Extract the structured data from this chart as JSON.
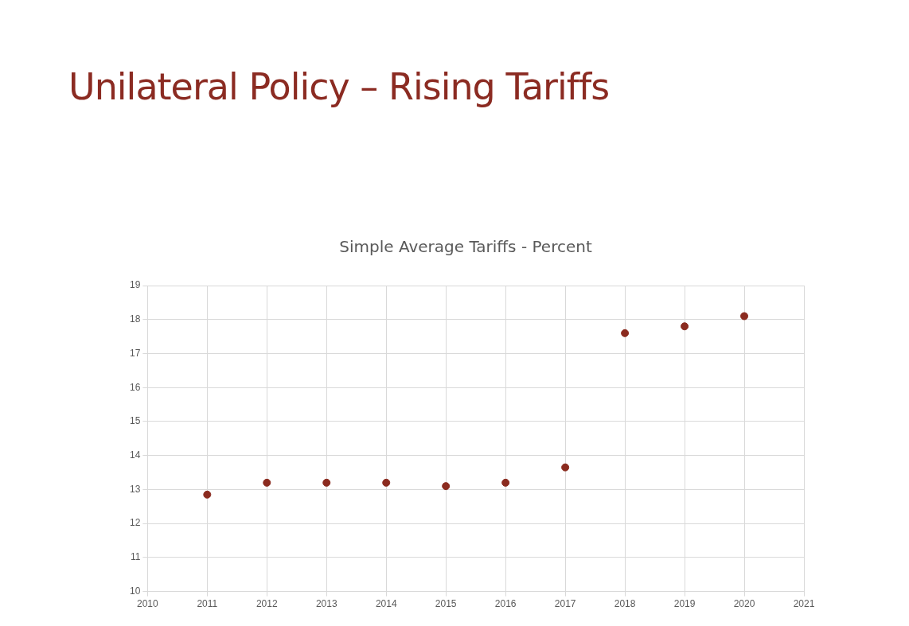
{
  "chart_data": {
    "type": "scatter",
    "title": "Unilateral Policy – Rising Tariffs",
    "subtitle": "Simple Average Tariffs - Percent",
    "x": [
      2011,
      2012,
      2013,
      2014,
      2015,
      2016,
      2017,
      2018,
      2019,
      2020
    ],
    "series": [
      {
        "color": "#8b2b1f",
        "values": [
          12.85,
          13.2,
          13.2,
          13.2,
          13.1,
          13.2,
          13.65,
          17.6,
          17.8,
          18.1
        ]
      }
    ],
    "xlim": [
      2010,
      2021
    ],
    "xticks": [
      2010,
      2011,
      2012,
      2013,
      2014,
      2015,
      2016,
      2017,
      2018,
      2019,
      2020,
      2021
    ],
    "ylim": [
      10,
      19
    ],
    "yticks": [
      10,
      11,
      12,
      13,
      14,
      15,
      16,
      17,
      18,
      19
    ],
    "grid": true,
    "legend": false,
    "marker": "circle"
  }
}
